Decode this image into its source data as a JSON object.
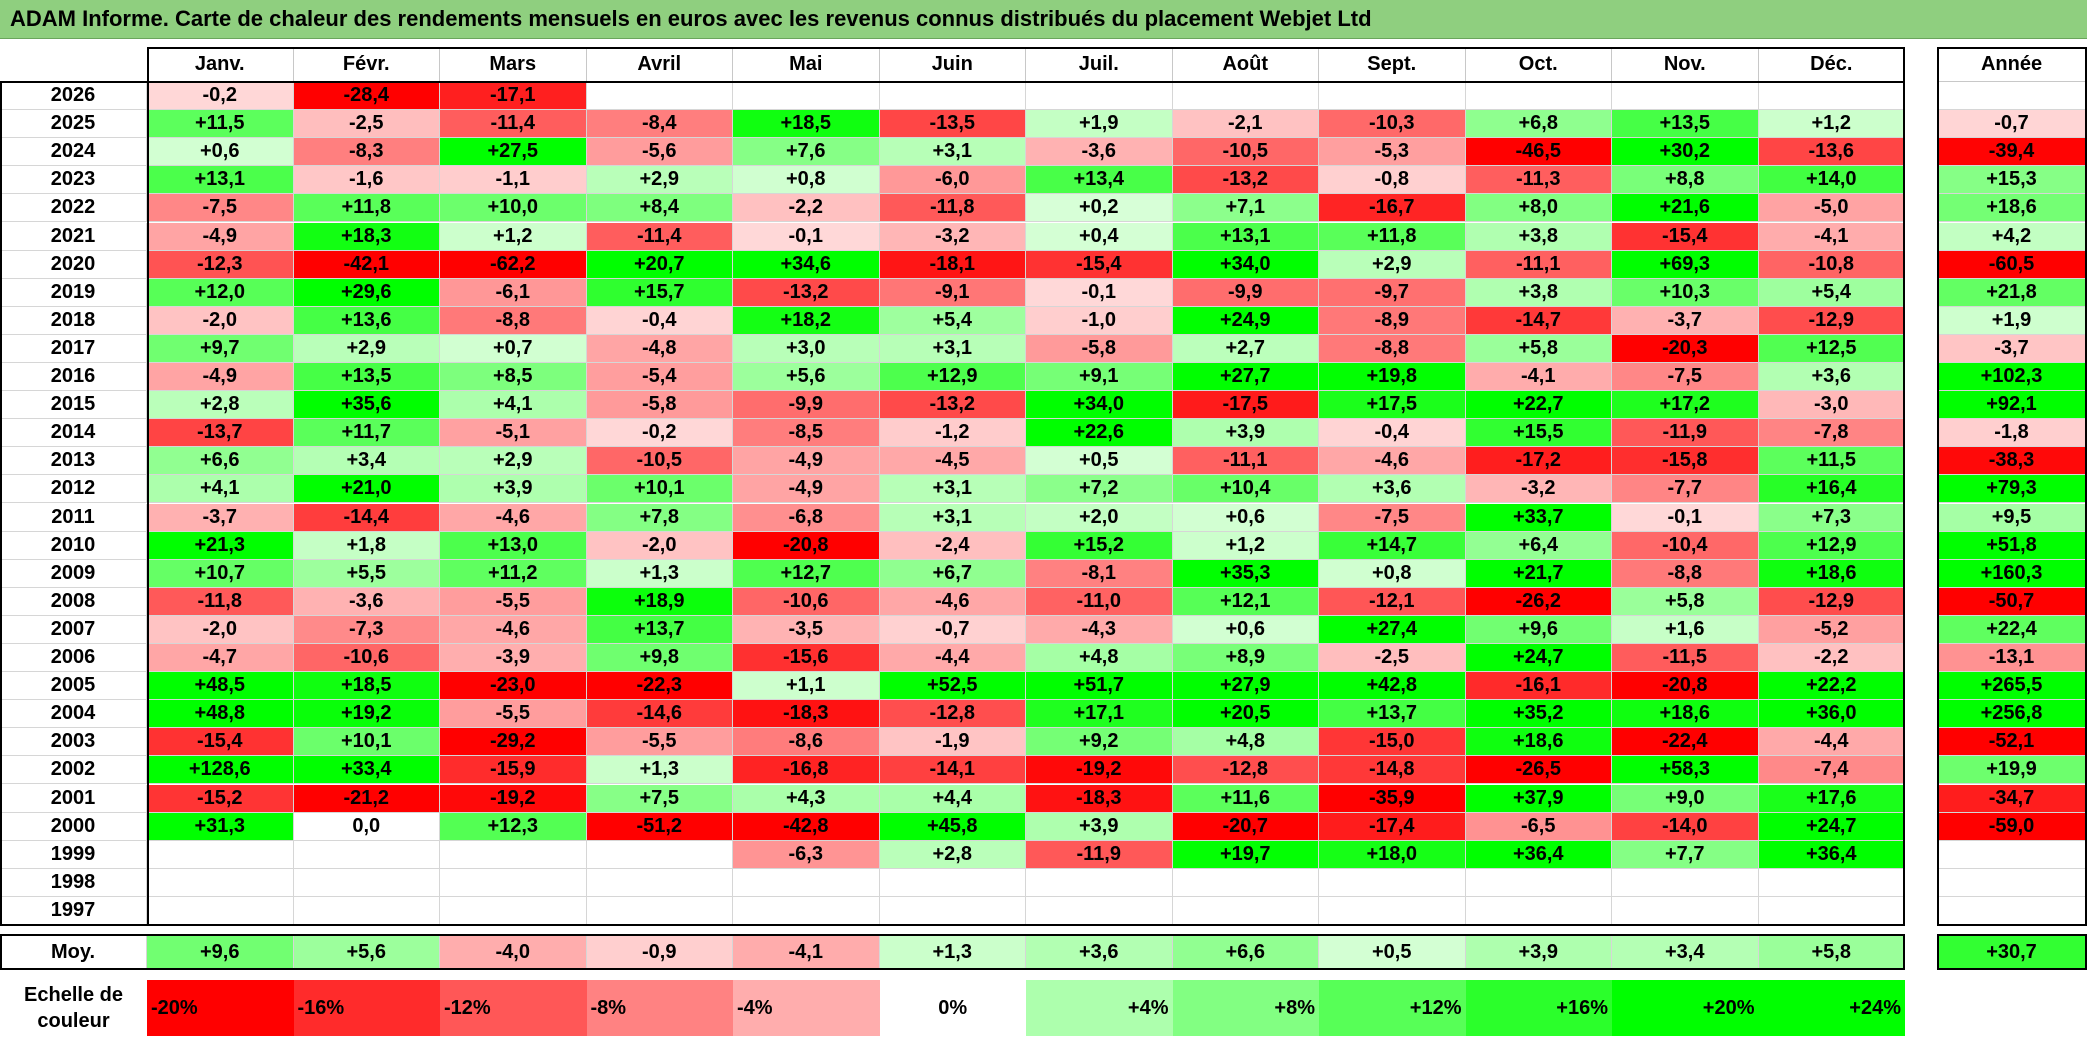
{
  "title": "ADAM Informe. Carte de chaleur des rendements mensuels en euros avec les revenus connus distribués du placement Webjet Ltd",
  "chart_data": {
    "type": "heatmap",
    "months": [
      "Janv.",
      "Févr.",
      "Mars",
      "Avril",
      "Mai",
      "Juin",
      "Juil.",
      "Août",
      "Sept.",
      "Oct.",
      "Nov.",
      "Déc."
    ],
    "year_header": "Année",
    "rows": [
      {
        "year": "2026",
        "values": [
          "-0,2",
          "-28,4",
          "-17,1",
          "",
          "",
          "",
          "",
          "",
          "",
          "",
          "",
          ""
        ],
        "annual": ""
      },
      {
        "year": "2025",
        "values": [
          "+11,5",
          "-2,5",
          "-11,4",
          "-8,4",
          "+18,5",
          "-13,5",
          "+1,9",
          "-2,1",
          "-10,3",
          "+6,8",
          "+13,5",
          "+1,2"
        ],
        "annual": "-0,7"
      },
      {
        "year": "2024",
        "values": [
          "+0,6",
          "-8,3",
          "+27,5",
          "-5,6",
          "+7,6",
          "+3,1",
          "-3,6",
          "-10,5",
          "-5,3",
          "-46,5",
          "+30,2",
          "-13,6"
        ],
        "annual": "-39,4"
      },
      {
        "year": "2023",
        "values": [
          "+13,1",
          "-1,6",
          "-1,1",
          "+2,9",
          "+0,8",
          "-6,0",
          "+13,4",
          "-13,2",
          "-0,8",
          "-11,3",
          "+8,8",
          "+14,0"
        ],
        "annual": "+15,3"
      },
      {
        "year": "2022",
        "values": [
          "-7,5",
          "+11,8",
          "+10,0",
          "+8,4",
          "-2,2",
          "-11,8",
          "+0,2",
          "+7,1",
          "-16,7",
          "+8,0",
          "+21,6",
          "-5,0"
        ],
        "annual": "+18,6"
      },
      {
        "year": "2021",
        "values": [
          "-4,9",
          "+18,3",
          "+1,2",
          "-11,4",
          "-0,1",
          "-3,2",
          "+0,4",
          "+13,1",
          "+11,8",
          "+3,8",
          "-15,4",
          "-4,1"
        ],
        "annual": "+4,2"
      },
      {
        "year": "2020",
        "values": [
          "-12,3",
          "-42,1",
          "-62,2",
          "+20,7",
          "+34,6",
          "-18,1",
          "-15,4",
          "+34,0",
          "+2,9",
          "-11,1",
          "+69,3",
          "-10,8"
        ],
        "annual": "-60,5"
      },
      {
        "year": "2019",
        "values": [
          "+12,0",
          "+29,6",
          "-6,1",
          "+15,7",
          "-13,2",
          "-9,1",
          "-0,1",
          "-9,9",
          "-9,7",
          "+3,8",
          "+10,3",
          "+5,4"
        ],
        "annual": "+21,8"
      },
      {
        "year": "2018",
        "values": [
          "-2,0",
          "+13,6",
          "-8,8",
          "-0,4",
          "+18,2",
          "+5,4",
          "-1,0",
          "+24,9",
          "-8,9",
          "-14,7",
          "-3,7",
          "-12,9"
        ],
        "annual": "+1,9"
      },
      {
        "year": "2017",
        "values": [
          "+9,7",
          "+2,9",
          "+0,7",
          "-4,8",
          "+3,0",
          "+3,1",
          "-5,8",
          "+2,7",
          "-8,8",
          "+5,8",
          "-20,3",
          "+12,5"
        ],
        "annual": "-3,7"
      },
      {
        "year": "2016",
        "values": [
          "-4,9",
          "+13,5",
          "+8,5",
          "-5,4",
          "+5,6",
          "+12,9",
          "+9,1",
          "+27,7",
          "+19,8",
          "-4,1",
          "-7,5",
          "+3,6"
        ],
        "annual": "+102,3"
      },
      {
        "year": "2015",
        "values": [
          "+2,8",
          "+35,6",
          "+4,1",
          "-5,8",
          "-9,9",
          "-13,2",
          "+34,0",
          "-17,5",
          "+17,5",
          "+22,7",
          "+17,2",
          "-3,0"
        ],
        "annual": "+92,1"
      },
      {
        "year": "2014",
        "values": [
          "-13,7",
          "+11,7",
          "-5,1",
          "-0,2",
          "-8,5",
          "-1,2",
          "+22,6",
          "+3,9",
          "-0,4",
          "+15,5",
          "-11,9",
          "-7,8"
        ],
        "annual": "-1,8"
      },
      {
        "year": "2013",
        "values": [
          "+6,6",
          "+3,4",
          "+2,9",
          "-10,5",
          "-4,9",
          "-4,5",
          "+0,5",
          "-11,1",
          "-4,6",
          "-17,2",
          "-15,8",
          "+11,5"
        ],
        "annual": "-38,3"
      },
      {
        "year": "2012",
        "values": [
          "+4,1",
          "+21,0",
          "+3,9",
          "+10,1",
          "-4,9",
          "+3,1",
          "+7,2",
          "+10,4",
          "+3,6",
          "-3,2",
          "-7,7",
          "+16,4"
        ],
        "annual": "+79,3"
      },
      {
        "year": "2011",
        "values": [
          "-3,7",
          "-14,4",
          "-4,6",
          "+7,8",
          "-6,8",
          "+3,1",
          "+2,0",
          "+0,6",
          "-7,5",
          "+33,7",
          "-0,1",
          "+7,3"
        ],
        "annual": "+9,5"
      },
      {
        "year": "2010",
        "values": [
          "+21,3",
          "+1,8",
          "+13,0",
          "-2,0",
          "-20,8",
          "-2,4",
          "+15,2",
          "+1,2",
          "+14,7",
          "+6,4",
          "-10,4",
          "+12,9"
        ],
        "annual": "+51,8"
      },
      {
        "year": "2009",
        "values": [
          "+10,7",
          "+5,5",
          "+11,2",
          "+1,3",
          "+12,7",
          "+6,7",
          "-8,1",
          "+35,3",
          "+0,8",
          "+21,7",
          "-8,8",
          "+18,6"
        ],
        "annual": "+160,3"
      },
      {
        "year": "2008",
        "values": [
          "-11,8",
          "-3,6",
          "-5,5",
          "+18,9",
          "-10,6",
          "-4,6",
          "-11,0",
          "+12,1",
          "-12,1",
          "-26,2",
          "+5,8",
          "-12,9"
        ],
        "annual": "-50,7"
      },
      {
        "year": "2007",
        "values": [
          "-2,0",
          "-7,3",
          "-4,6",
          "+13,7",
          "-3,5",
          "-0,7",
          "-4,3",
          "+0,6",
          "+27,4",
          "+9,6",
          "+1,6",
          "-5,2"
        ],
        "annual": "+22,4"
      },
      {
        "year": "2006",
        "values": [
          "-4,7",
          "-10,6",
          "-3,9",
          "+9,8",
          "-15,6",
          "-4,4",
          "+4,8",
          "+8,9",
          "-2,5",
          "+24,7",
          "-11,5",
          "-2,2"
        ],
        "annual": "-13,1"
      },
      {
        "year": "2005",
        "values": [
          "+48,5",
          "+18,5",
          "-23,0",
          "-22,3",
          "+1,1",
          "+52,5",
          "+51,7",
          "+27,9",
          "+42,8",
          "-16,1",
          "-20,8",
          "+22,2"
        ],
        "annual": "+265,5"
      },
      {
        "year": "2004",
        "values": [
          "+48,8",
          "+19,2",
          "-5,5",
          "-14,6",
          "-18,3",
          "-12,8",
          "+17,1",
          "+20,5",
          "+13,7",
          "+35,2",
          "+18,6",
          "+36,0"
        ],
        "annual": "+256,8"
      },
      {
        "year": "2003",
        "values": [
          "-15,4",
          "+10,1",
          "-29,2",
          "-5,5",
          "-8,6",
          "-1,9",
          "+9,2",
          "+4,8",
          "-15,0",
          "+18,6",
          "-22,4",
          "-4,4"
        ],
        "annual": "-52,1"
      },
      {
        "year": "2002",
        "values": [
          "+128,6",
          "+33,4",
          "-15,9",
          "+1,3",
          "-16,8",
          "-14,1",
          "-19,2",
          "-12,8",
          "-14,8",
          "-26,5",
          "+58,3",
          "-7,4"
        ],
        "annual": "+19,9"
      },
      {
        "year": "2001",
        "values": [
          "-15,2",
          "-21,2",
          "-19,2",
          "+7,5",
          "+4,3",
          "+4,4",
          "-18,3",
          "+11,6",
          "-35,9",
          "+37,9",
          "+9,0",
          "+17,6"
        ],
        "annual": "-34,7"
      },
      {
        "year": "2000",
        "values": [
          "+31,3",
          "0,0",
          "+12,3",
          "-51,2",
          "-42,8",
          "+45,8",
          "+3,9",
          "-20,7",
          "-17,4",
          "-6,5",
          "-14,0",
          "+24,7"
        ],
        "annual": "-59,0"
      },
      {
        "year": "1999",
        "values": [
          "",
          "",
          "",
          "",
          "-6,3",
          "+2,8",
          "-11,9",
          "+19,7",
          "+18,0",
          "+36,4",
          "+7,7",
          "+36,4"
        ],
        "annual": ""
      },
      {
        "year": "1998",
        "values": [
          "",
          "",
          "",
          "",
          "",
          "",
          "",
          "",
          "",
          "",
          "",
          ""
        ],
        "annual": ""
      },
      {
        "year": "1997",
        "values": [
          "",
          "",
          "",
          "",
          "",
          "",
          "",
          "",
          "",
          "",
          "",
          ""
        ],
        "annual": ""
      }
    ],
    "average": {
      "label": "Moy.",
      "values": [
        "+9,6",
        "+5,6",
        "-4,0",
        "-0,9",
        "-4,1",
        "+1,3",
        "+3,6",
        "+6,6",
        "+0,5",
        "+3,9",
        "+3,4",
        "+5,8"
      ],
      "annual": "+30,7"
    },
    "color_scale": {
      "label_line1": "Echelle de",
      "label_line2": "couleur",
      "stops": [
        "-20%",
        "-16%",
        "-12%",
        "-8%",
        "-4%",
        "0%",
        "+4%",
        "+8%",
        "+12%",
        "+16%",
        "+20%",
        "+24%"
      ]
    },
    "colors": {
      "negative_max": "#ff0000",
      "neutral": "#ffffff",
      "positive_max": "#00ff00",
      "title_bg": "#8fcf7f"
    }
  }
}
